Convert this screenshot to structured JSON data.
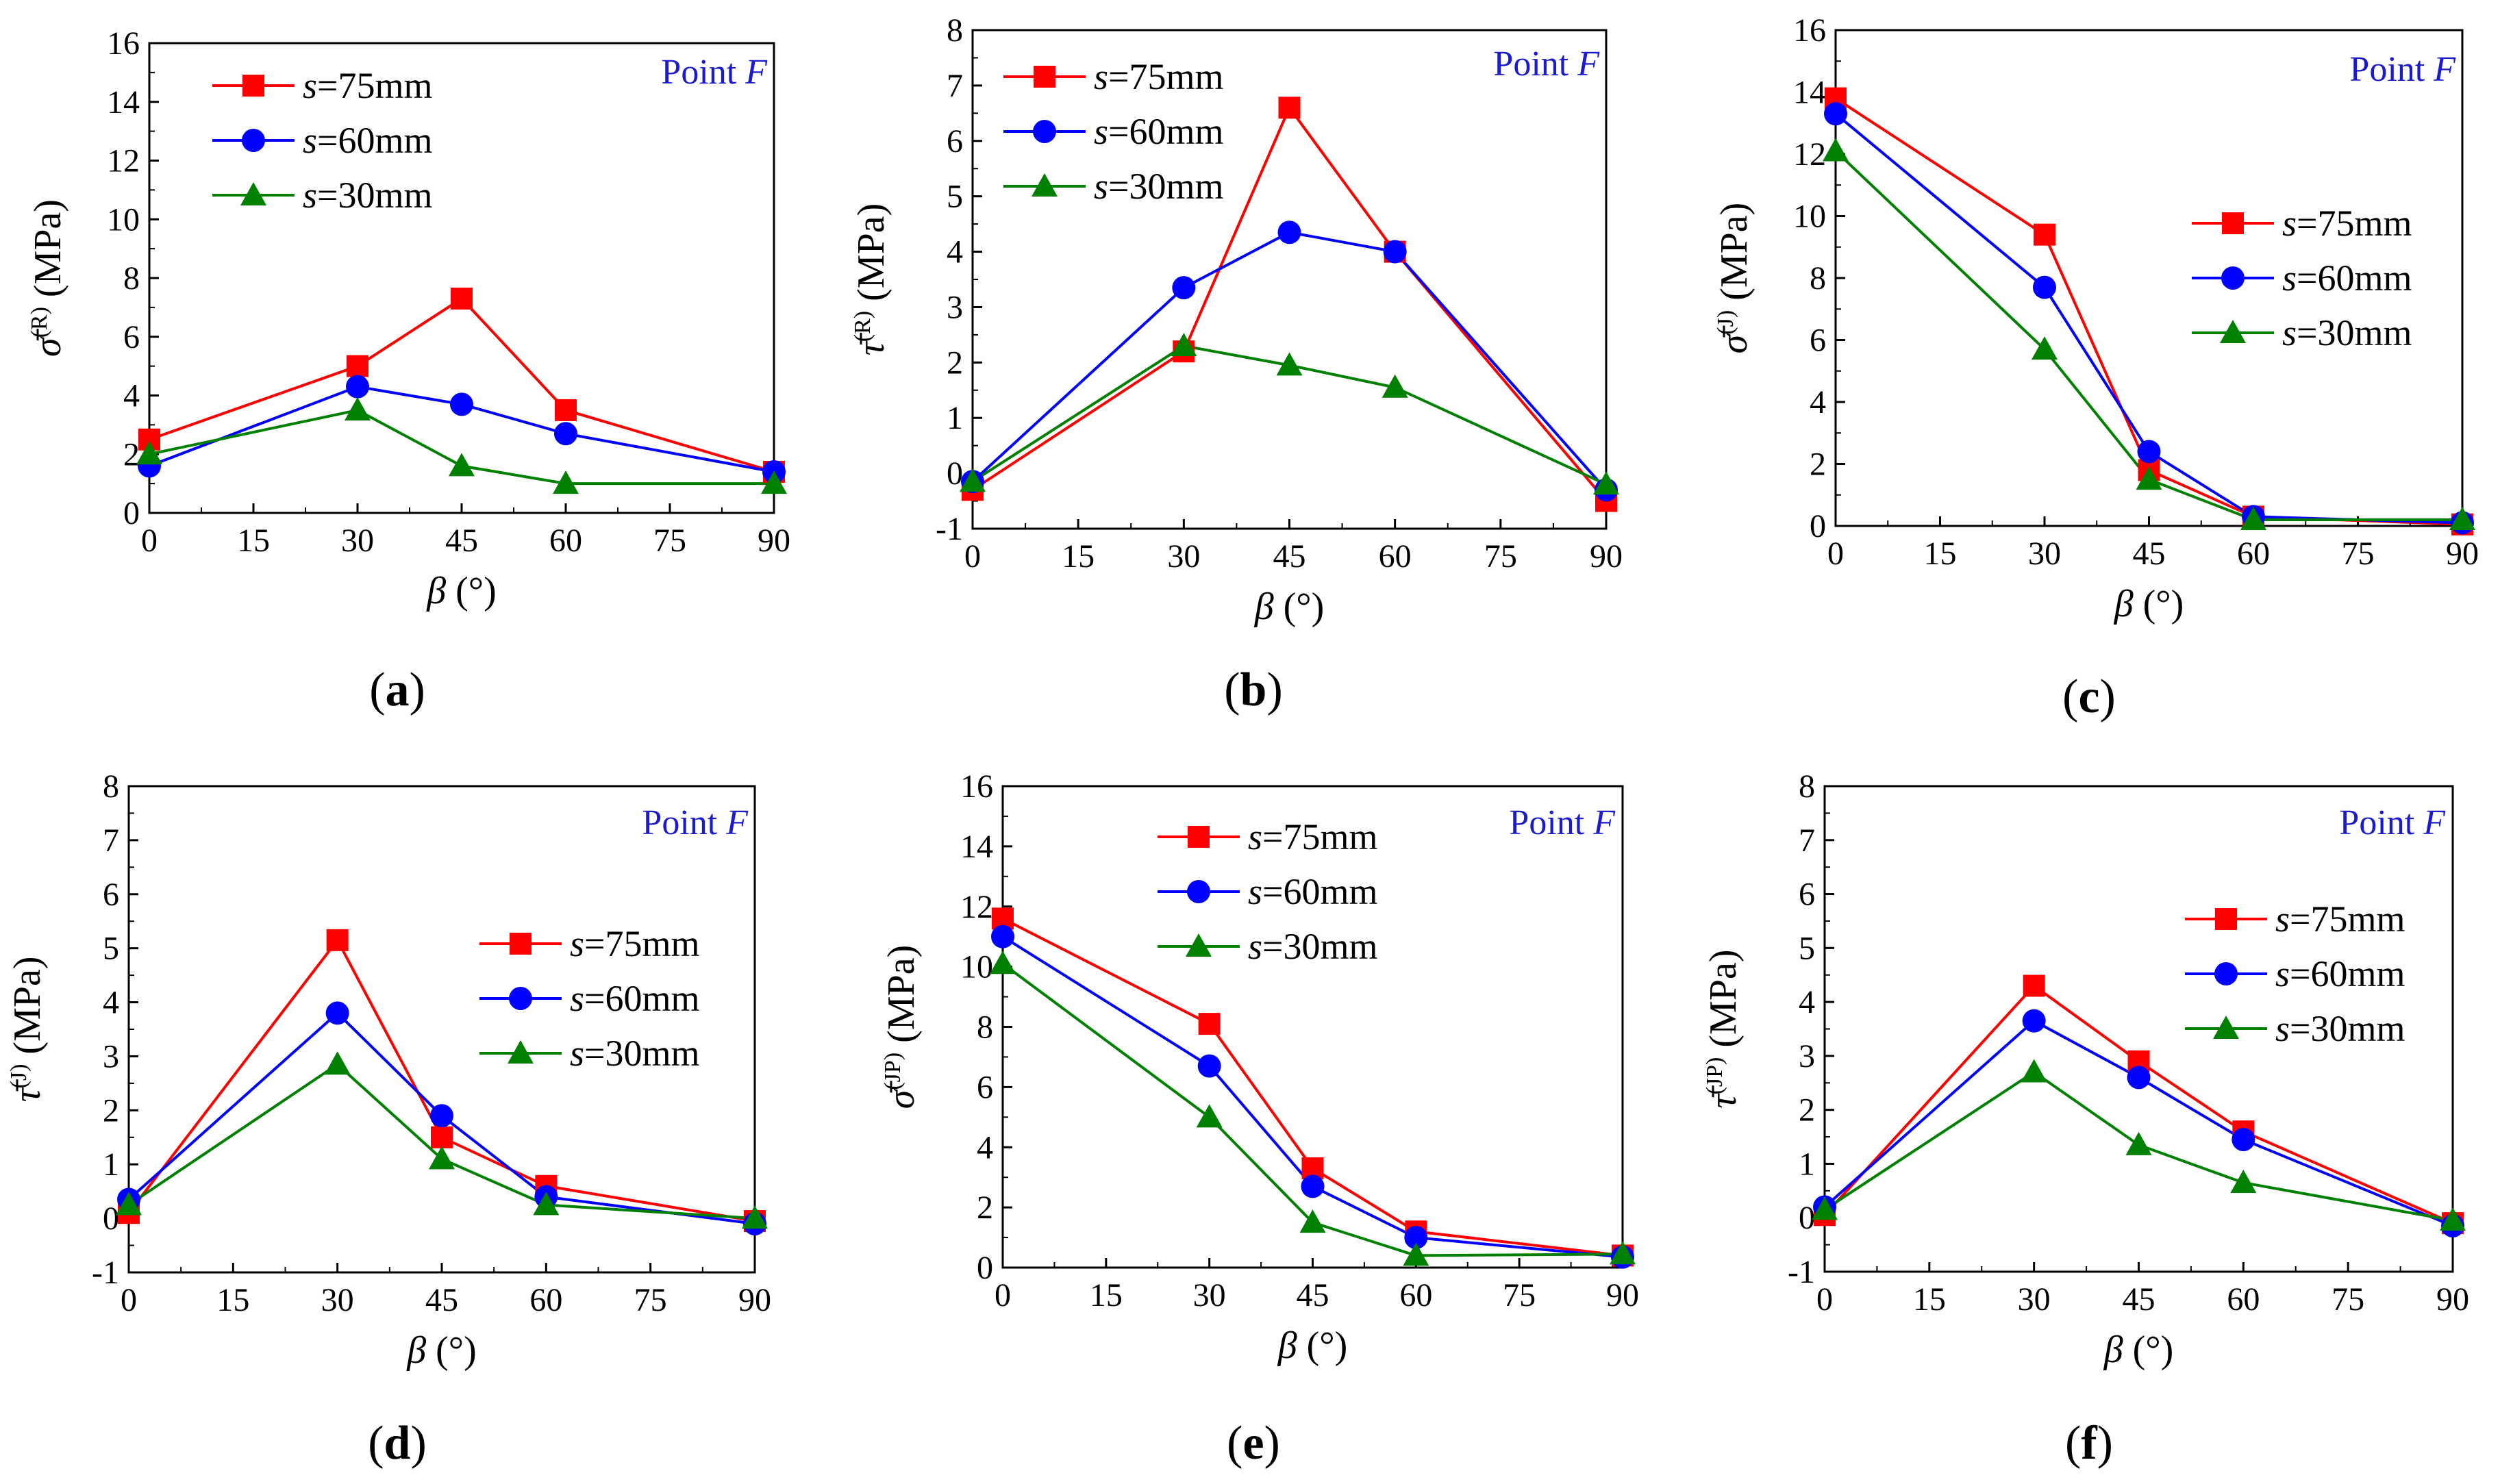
{
  "colors": {
    "s75": "#ff0000",
    "s60": "#0000ff",
    "s30": "#008000",
    "annotation": "#1a1ad0",
    "axis": "#000000"
  },
  "chart_data": [
    {
      "panel": "(a)",
      "type": "line",
      "annotation": "Point F",
      "xlabel": "β (°)",
      "ylabel": "σ̄(R) (MPa)",
      "xlim": [
        0,
        90
      ],
      "xticks": [
        0,
        15,
        30,
        45,
        60,
        75,
        90
      ],
      "ylim": [
        0,
        16
      ],
      "yticks": [
        0,
        2,
        4,
        6,
        8,
        10,
        12,
        14,
        16
      ],
      "legend": "top-left",
      "x": [
        0,
        30,
        45,
        60,
        90
      ],
      "series": [
        {
          "name": "s=75mm",
          "marker": "square",
          "values": [
            2.5,
            5.0,
            7.3,
            3.5,
            1.4
          ]
        },
        {
          "name": "s=60mm",
          "marker": "circle",
          "values": [
            1.6,
            4.3,
            3.7,
            2.7,
            1.4
          ]
        },
        {
          "name": "s=30mm",
          "marker": "triangle",
          "values": [
            2.0,
            3.5,
            1.6,
            1.0,
            1.0
          ]
        }
      ]
    },
    {
      "panel": "(b)",
      "type": "line",
      "annotation": "Point F",
      "xlabel": "β (°)",
      "ylabel": "τ̄(R) (MPa)",
      "xlim": [
        0,
        90
      ],
      "xticks": [
        0,
        15,
        30,
        45,
        60,
        75,
        90
      ],
      "ylim": [
        -1,
        8
      ],
      "yticks": [
        -1,
        0,
        1,
        2,
        3,
        4,
        5,
        6,
        7,
        8
      ],
      "legend": "top-left",
      "x": [
        0,
        30,
        45,
        60,
        90
      ],
      "series": [
        {
          "name": "s=75mm",
          "marker": "square",
          "values": [
            -0.3,
            2.2,
            6.6,
            4.0,
            -0.5
          ]
        },
        {
          "name": "s=60mm",
          "marker": "circle",
          "values": [
            -0.15,
            3.35,
            4.35,
            4.0,
            -0.3
          ]
        },
        {
          "name": "s=30mm",
          "marker": "triangle",
          "values": [
            -0.15,
            2.3,
            1.95,
            1.55,
            -0.2
          ]
        }
      ]
    },
    {
      "panel": "(c)",
      "type": "line",
      "annotation": "Point F",
      "xlabel": "β (°)",
      "ylabel": "σ̄(J) (MPa)",
      "xlim": [
        0,
        90
      ],
      "xticks": [
        0,
        15,
        30,
        45,
        60,
        75,
        90
      ],
      "ylim": [
        0,
        16
      ],
      "yticks": [
        0,
        2,
        4,
        6,
        8,
        10,
        12,
        14,
        16
      ],
      "legend": "right",
      "x": [
        0,
        30,
        45,
        60,
        90
      ],
      "series": [
        {
          "name": "s=75mm",
          "marker": "square",
          "values": [
            13.8,
            9.4,
            1.8,
            0.3,
            0.05
          ]
        },
        {
          "name": "s=60mm",
          "marker": "circle",
          "values": [
            13.3,
            7.7,
            2.4,
            0.3,
            0.1
          ]
        },
        {
          "name": "s=30mm",
          "marker": "triangle",
          "values": [
            12.1,
            5.7,
            1.5,
            0.2,
            0.2
          ]
        }
      ]
    },
    {
      "panel": "(d)",
      "type": "line",
      "annotation": "Point F",
      "xlabel": "β (°)",
      "ylabel": "τ̄(J) (MPa)",
      "xlim": [
        0,
        90
      ],
      "xticks": [
        0,
        15,
        30,
        45,
        60,
        75,
        90
      ],
      "ylim": [
        -1,
        8
      ],
      "yticks": [
        -1,
        0,
        1,
        2,
        3,
        4,
        5,
        6,
        7,
        8
      ],
      "legend": "right",
      "x": [
        0,
        30,
        45,
        60,
        90
      ],
      "series": [
        {
          "name": "s=75mm",
          "marker": "square",
          "values": [
            0.1,
            5.15,
            1.5,
            0.6,
            -0.05
          ]
        },
        {
          "name": "s=60mm",
          "marker": "circle",
          "values": [
            0.35,
            3.8,
            1.9,
            0.4,
            -0.1
          ]
        },
        {
          "name": "s=30mm",
          "marker": "triangle",
          "values": [
            0.25,
            2.85,
            1.1,
            0.25,
            0.0
          ]
        }
      ]
    },
    {
      "panel": "(e)",
      "type": "line",
      "annotation": "Point F",
      "xlabel": "β (°)",
      "ylabel": "σ̄(JP) (MPa)",
      "xlim": [
        0,
        90
      ],
      "xticks": [
        0,
        15,
        30,
        45,
        60,
        75,
        90
      ],
      "ylim": [
        0,
        16
      ],
      "yticks": [
        0,
        2,
        4,
        6,
        8,
        10,
        12,
        14,
        16
      ],
      "legend": "top-left",
      "x": [
        0,
        30,
        45,
        60,
        90
      ],
      "series": [
        {
          "name": "s=75mm",
          "marker": "square",
          "values": [
            11.6,
            8.1,
            3.3,
            1.2,
            0.4
          ]
        },
        {
          "name": "s=60mm",
          "marker": "circle",
          "values": [
            11.0,
            6.7,
            2.7,
            1.0,
            0.35
          ]
        },
        {
          "name": "s=30mm",
          "marker": "triangle",
          "values": [
            10.1,
            5.0,
            1.5,
            0.4,
            0.45
          ]
        }
      ]
    },
    {
      "panel": "(f)",
      "type": "line",
      "annotation": "Point F",
      "xlabel": "β (°)",
      "ylabel": "τ̄(JP) (MPa)",
      "xlim": [
        0,
        90
      ],
      "xticks": [
        0,
        15,
        30,
        45,
        60,
        75,
        90
      ],
      "ylim": [
        -1,
        8
      ],
      "yticks": [
        -1,
        0,
        1,
        2,
        3,
        4,
        5,
        6,
        7,
        8
      ],
      "legend": "right",
      "x": [
        0,
        30,
        45,
        60,
        90
      ],
      "series": [
        {
          "name": "s=75mm",
          "marker": "square",
          "values": [
            0.05,
            4.3,
            2.9,
            1.6,
            -0.1
          ]
        },
        {
          "name": "s=60mm",
          "marker": "circle",
          "values": [
            0.2,
            3.65,
            2.6,
            1.45,
            -0.15
          ]
        },
        {
          "name": "s=30mm",
          "marker": "triangle",
          "values": [
            0.15,
            2.7,
            1.35,
            0.65,
            -0.05
          ]
        }
      ]
    }
  ]
}
